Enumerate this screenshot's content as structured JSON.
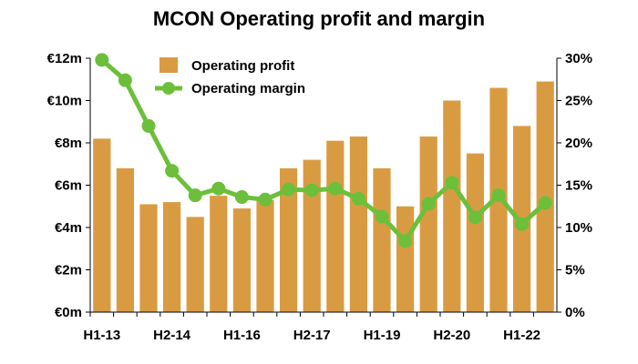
{
  "chart_data": {
    "type": "bar+line",
    "title": "MCON Operating profit and margin",
    "categories": [
      "H1-13",
      "H2-13",
      "H1-14",
      "H2-14",
      "H1-15",
      "H2-15",
      "H1-16",
      "H2-16",
      "H1-17",
      "H2-17",
      "H1-18",
      "H2-18",
      "H1-19",
      "H2-19",
      "H1-20",
      "H2-20",
      "H1-21",
      "H2-21",
      "H1-22",
      "H2-22"
    ],
    "x_tick_labels": [
      "H1-13",
      "H2-14",
      "H1-16",
      "H2-17",
      "H1-19",
      "H2-20",
      "H1-22"
    ],
    "series": [
      {
        "name": "Operating profit",
        "kind": "bar",
        "axis": "left",
        "color": "#D99B42",
        "values": [
          8.2,
          6.8,
          5.1,
          5.2,
          4.5,
          5.5,
          4.9,
          5.3,
          6.8,
          7.2,
          8.1,
          8.3,
          6.8,
          5.0,
          8.3,
          10.0,
          7.5,
          10.6,
          8.8,
          10.9
        ]
      },
      {
        "name": "Operating margin",
        "kind": "line",
        "axis": "right",
        "color": "#6CBF3A",
        "values": [
          29.8,
          27.4,
          22.0,
          16.7,
          13.8,
          14.6,
          13.6,
          13.3,
          14.5,
          14.4,
          14.6,
          13.4,
          11.3,
          8.4,
          12.8,
          15.3,
          11.2,
          13.8,
          10.4,
          12.9
        ]
      }
    ],
    "ylim_left": [
      0,
      12
    ],
    "ylim_right": [
      0,
      30
    ],
    "y_left_ticks": [
      {
        "value": 0,
        "label": "€0m"
      },
      {
        "value": 2,
        "label": "€2m"
      },
      {
        "value": 4,
        "label": "€4m"
      },
      {
        "value": 6,
        "label": "€6m"
      },
      {
        "value": 8,
        "label": "€8m"
      },
      {
        "value": 10,
        "label": "€10m"
      },
      {
        "value": 12,
        "label": "€12m"
      }
    ],
    "y_right_ticks": [
      {
        "value": 0,
        "label": "0%"
      },
      {
        "value": 5,
        "label": "5%"
      },
      {
        "value": 10,
        "label": "10%"
      },
      {
        "value": 15,
        "label": "15%"
      },
      {
        "value": 20,
        "label": "20%"
      },
      {
        "value": 25,
        "label": "25%"
      },
      {
        "value": 30,
        "label": "30%"
      }
    ],
    "grid": false,
    "legend_position": "top-left"
  }
}
